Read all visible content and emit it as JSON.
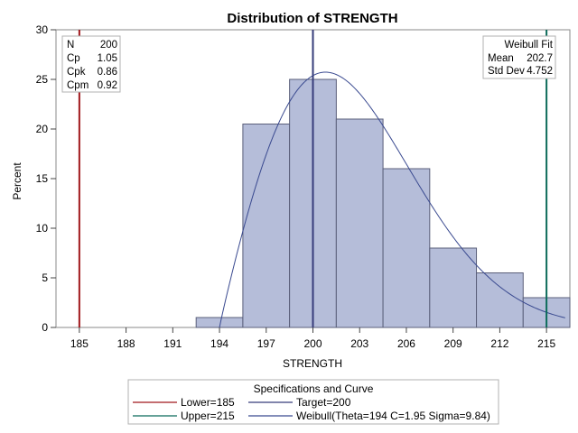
{
  "chart_data": {
    "type": "bar",
    "title": "Distribution of STRENGTH",
    "xlabel": "STRENGTH",
    "ylabel": "Percent",
    "xlim": [
      183.5,
      216.5
    ],
    "ylim": [
      0,
      30
    ],
    "x_ticks": [
      185,
      188,
      191,
      194,
      197,
      200,
      203,
      206,
      209,
      212,
      215
    ],
    "y_ticks": [
      0,
      5,
      10,
      15,
      20,
      25,
      30
    ],
    "bin_width": 3,
    "bins": [
      {
        "mid": 194,
        "percent": 1
      },
      {
        "mid": 197,
        "percent": 20.5
      },
      {
        "mid": 200,
        "percent": 25
      },
      {
        "mid": 203,
        "percent": 21
      },
      {
        "mid": 206,
        "percent": 16
      },
      {
        "mid": 209,
        "percent": 8
      },
      {
        "mid": 212,
        "percent": 5.5
      },
      {
        "mid": 215,
        "percent": 3
      }
    ],
    "reference_lines": [
      {
        "value": 185,
        "color": "#a0181c"
      },
      {
        "value": 215,
        "color": "#0b6b5a"
      },
      {
        "value": 200,
        "color": "#363c7a"
      }
    ],
    "curve": {
      "distribution": "Weibull",
      "theta": 194,
      "c": 1.95,
      "sigma": 9.84,
      "color": "#3a4a90"
    },
    "colors": {
      "bar_fill": "#b5bdd9",
      "bar_stroke": "#5a5f7a"
    },
    "stats_left": {
      "rows": [
        {
          "label": "N",
          "value": "200"
        },
        {
          "label": "Cp",
          "value": "1.05"
        },
        {
          "label": "Cpk",
          "value": "0.86"
        },
        {
          "label": "Cpm",
          "value": "0.92"
        }
      ]
    },
    "stats_right": {
      "header": "Weibull Fit",
      "rows": [
        {
          "label": "Mean",
          "value": "202.7"
        },
        {
          "label": "Std Dev",
          "value": "4.752"
        }
      ]
    },
    "legend": {
      "title": "Specifications and Curve",
      "placement": "bottom",
      "entries": [
        {
          "label": "Lower=185",
          "color": "#a0181c"
        },
        {
          "label": "Target=200",
          "color": "#363c7a"
        },
        {
          "label": "Upper=215",
          "color": "#0b6b5a"
        },
        {
          "label": "Weibull(Theta=194 C=1.95 Sigma=9.84)",
          "color": "#3a4a90"
        }
      ]
    }
  }
}
